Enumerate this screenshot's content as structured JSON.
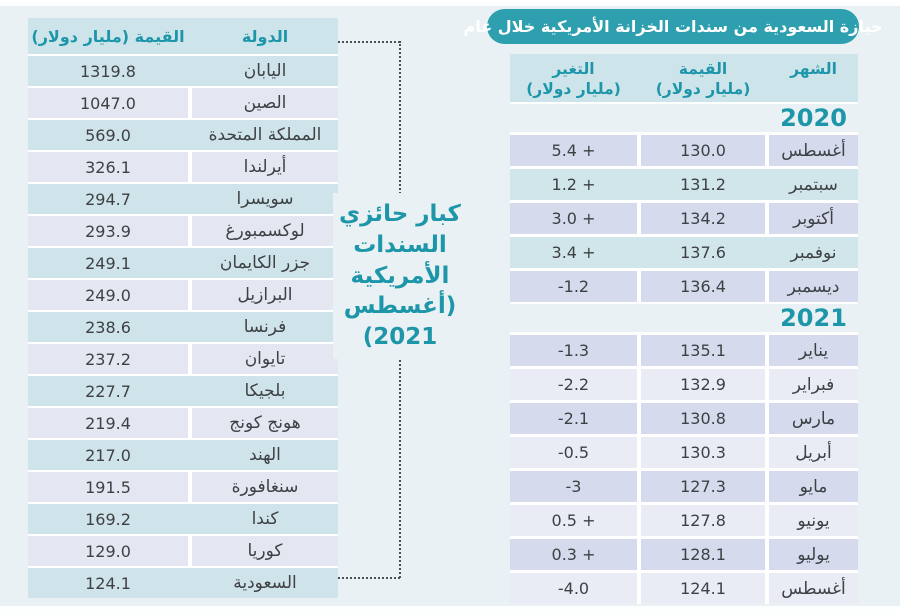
{
  "title_badge": "حيازة السعودية من سندات الخزانة الأمريكية خلال عام",
  "annotation": "كبار حائزي\nالسندات\nالأمريكية\n(أغسطس\n2021)",
  "colors": {
    "accent_teal": "#2d9fae",
    "header_text_teal": "#1e96a9",
    "header_band": "#cde4ea",
    "row_lavender": "#d6daed",
    "row_mint": "#d0e6eb",
    "row_light": "#e9ebf5",
    "text_dark": "#3e4144",
    "page_background": "#eaf1f5"
  },
  "chart_data": [
    {
      "type": "table",
      "title": "حيازة السعودية من سندات الخزانة الأمريكية خلال عام",
      "headers": {
        "month": "الشهر",
        "value_label": "القيمة",
        "value_unit": "(مليار دولار)",
        "change_label": "التغير",
        "change_unit": "(مليار دولار)"
      },
      "year_2020": "2020",
      "year_2021": "2021",
      "rows_2020": [
        {
          "month": "أغسطس",
          "value": "130.0",
          "change": "5.4 +"
        },
        {
          "month": "سبتمبر",
          "value": "131.2",
          "change": "1.2 +"
        },
        {
          "month": "أكتوبر",
          "value": "134.2",
          "change": "3.0 +"
        },
        {
          "month": "نوفمبر",
          "value": "137.6",
          "change": "3.4 +"
        },
        {
          "month": "ديسمبر",
          "value": "136.4",
          "change": "-1.2"
        }
      ],
      "rows_2021": [
        {
          "month": "يناير",
          "value": "135.1",
          "change": "-1.3"
        },
        {
          "month": "فبراير",
          "value": "132.9",
          "change": "-2.2"
        },
        {
          "month": "مارس",
          "value": "130.8",
          "change": "-2.1"
        },
        {
          "month": "أبريل",
          "value": "130.3",
          "change": "-0.5"
        },
        {
          "month": "مايو",
          "value": "127.3",
          "change": "-3"
        },
        {
          "month": "يونيو",
          "value": "127.8",
          "change": "0.5 +"
        },
        {
          "month": "يوليو",
          "value": "128.1",
          "change": "0.3 +"
        },
        {
          "month": "أغسطس",
          "value": "124.1",
          "change": "-4.0"
        }
      ]
    },
    {
      "type": "table",
      "title": "كبار حائزي السندات الأمريكية (أغسطس 2021)",
      "headers": {
        "country": "الدولة",
        "value": "القيمة (مليار دولار)"
      },
      "rows": [
        {
          "country": "اليابان",
          "value": "1319.8"
        },
        {
          "country": "الصين",
          "value": "1047.0"
        },
        {
          "country": "المملكة المتحدة",
          "value": "569.0"
        },
        {
          "country": "أيرلندا",
          "value": "326.1"
        },
        {
          "country": "سويسرا",
          "value": "294.7"
        },
        {
          "country": "لوكسمبورغ",
          "value": "293.9"
        },
        {
          "country": "جزر الكايمان",
          "value": "249.1"
        },
        {
          "country": "البرازيل",
          "value": "249.0"
        },
        {
          "country": "فرنسا",
          "value": "238.6"
        },
        {
          "country": "تايوان",
          "value": "237.2"
        },
        {
          "country": "بلجيكا",
          "value": "227.7"
        },
        {
          "country": "هونج كونج",
          "value": "219.4"
        },
        {
          "country": "الهند",
          "value": "217.0"
        },
        {
          "country": "سنغافورة",
          "value": "191.5"
        },
        {
          "country": "كندا",
          "value": "169.2"
        },
        {
          "country": "كوريا",
          "value": "129.0"
        },
        {
          "country": "السعودية",
          "value": "124.1"
        }
      ]
    }
  ]
}
